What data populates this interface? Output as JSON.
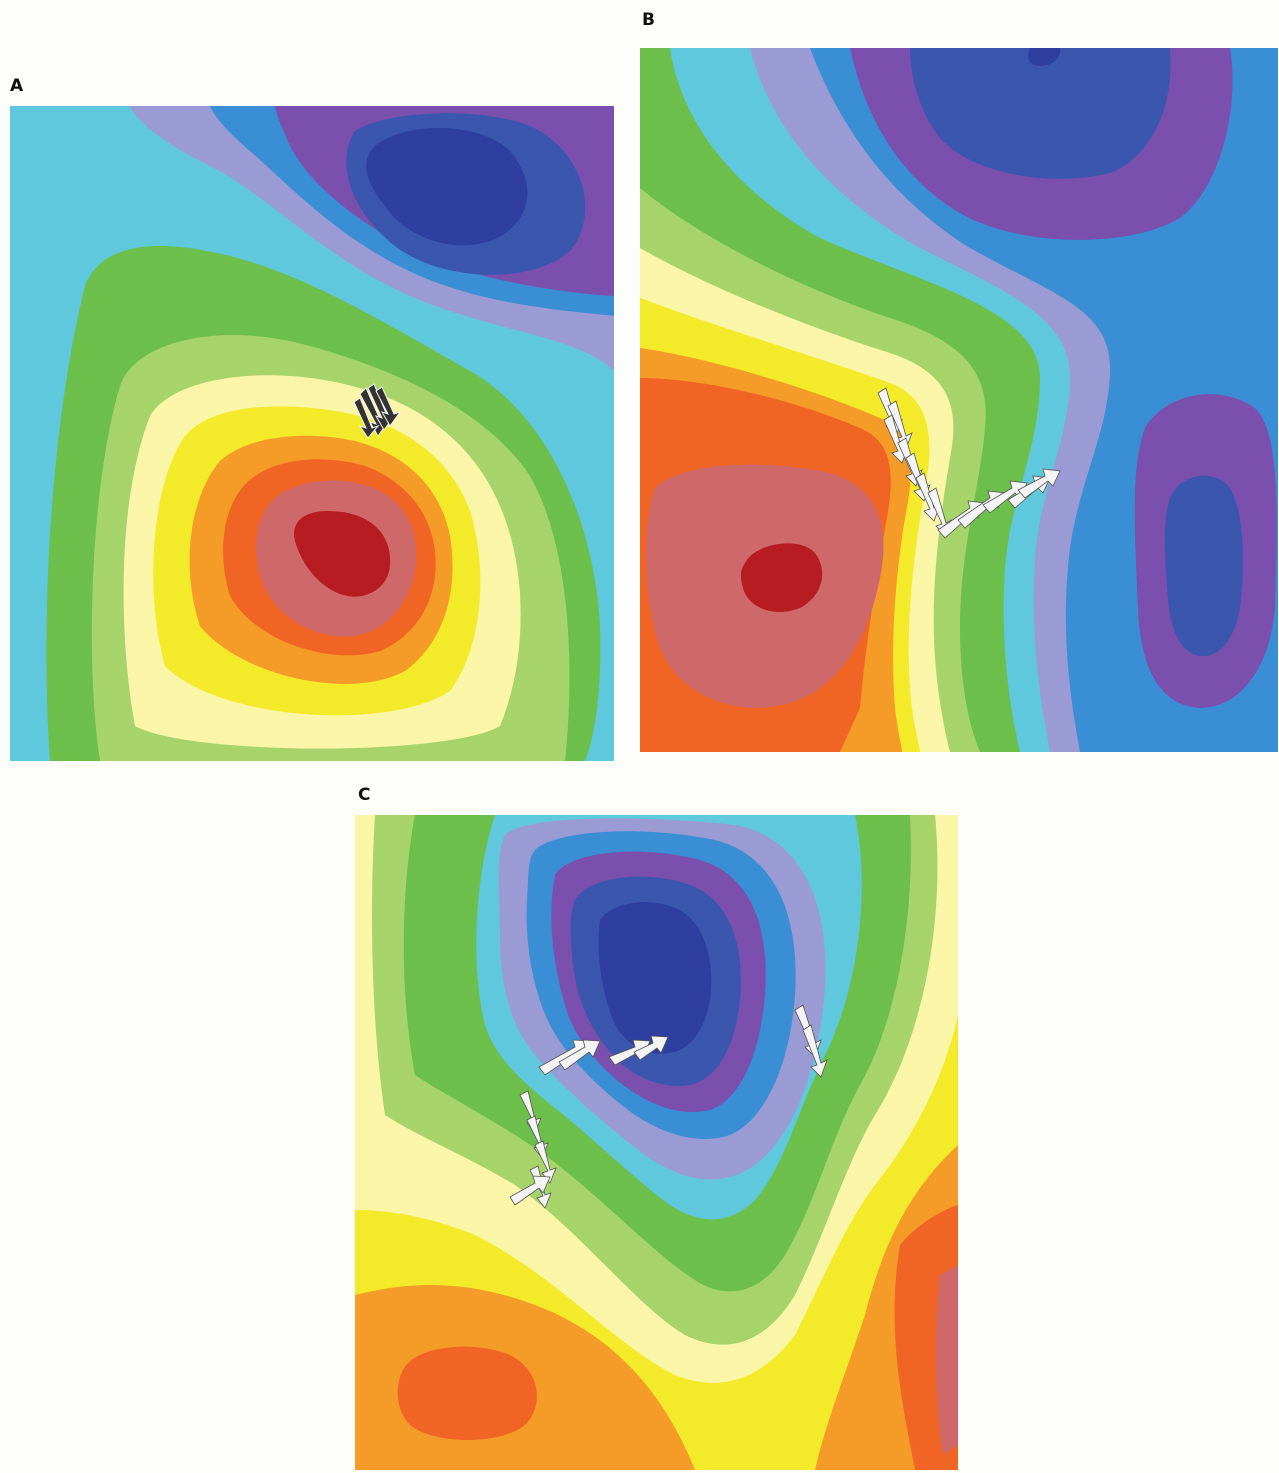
{
  "figure": {
    "panels": [
      {
        "label": "A"
      },
      {
        "label": "B"
      },
      {
        "label": "C"
      }
    ]
  },
  "colors": {
    "level_0": "#2f3fa0",
    "level_1": "#3b57ad",
    "level_2": "#7a4fae",
    "level_3": "#3a8fd4",
    "level_4": "#9a9ad4",
    "level_5": "#5fc8dc",
    "level_6": "#6cbf4a",
    "level_7": "#a7d36b",
    "level_8": "#fbf5a8",
    "level_9": "#f3ea2a",
    "level_10": "#f49b28",
    "level_11": "#f06424",
    "level_12": "#cf6868",
    "level_13": "#b61c22",
    "arrow_light": "#f4f4f4",
    "arrow_dark": "#333333"
  }
}
